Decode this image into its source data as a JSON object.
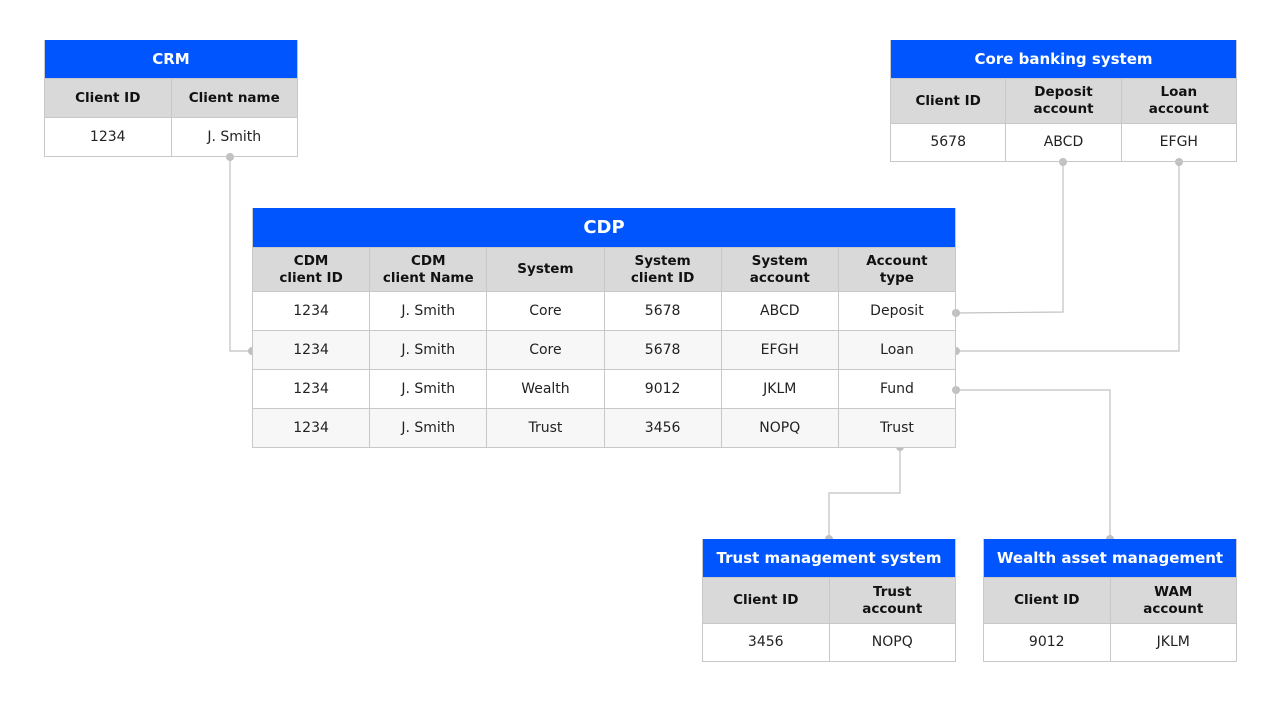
{
  "colors": {
    "title_bg": "#0055ff",
    "header_bg": "#d9d9d9",
    "connector": "#c0c0c0"
  },
  "tables": {
    "crm": {
      "title": "CRM",
      "headers": [
        "Client ID",
        "Client name"
      ],
      "rows": [
        [
          "1234",
          "J. Smith"
        ]
      ]
    },
    "core": {
      "title": "Core banking system",
      "headers": [
        "Client ID",
        "Deposit\naccount",
        "Loan\naccount"
      ],
      "rows": [
        [
          "5678",
          "ABCD",
          "EFGH"
        ]
      ]
    },
    "cdp": {
      "title": "CDP",
      "headers": [
        "CDM\nclient ID",
        "CDM\nclient Name",
        "System",
        "System\nclient ID",
        "System\naccount",
        "Account\ntype"
      ],
      "rows": [
        [
          "1234",
          "J. Smith",
          "Core",
          "5678",
          "ABCD",
          "Deposit"
        ],
        [
          "1234",
          "J. Smith",
          "Core",
          "5678",
          "EFGH",
          "Loan"
        ],
        [
          "1234",
          "J. Smith",
          "Wealth",
          "9012",
          "JKLM",
          "Fund"
        ],
        [
          "1234",
          "J. Smith",
          "Trust",
          "3456",
          "NOPQ",
          "Trust"
        ]
      ]
    },
    "trust": {
      "title": "Trust management system",
      "headers": [
        "Client ID",
        "Trust\naccount"
      ],
      "rows": [
        [
          "3456",
          "NOPQ"
        ]
      ]
    },
    "wam": {
      "title": "Wealth asset management",
      "headers": [
        "Client ID",
        "WAM\naccount"
      ],
      "rows": [
        [
          "9012",
          "JKLM"
        ]
      ]
    }
  }
}
